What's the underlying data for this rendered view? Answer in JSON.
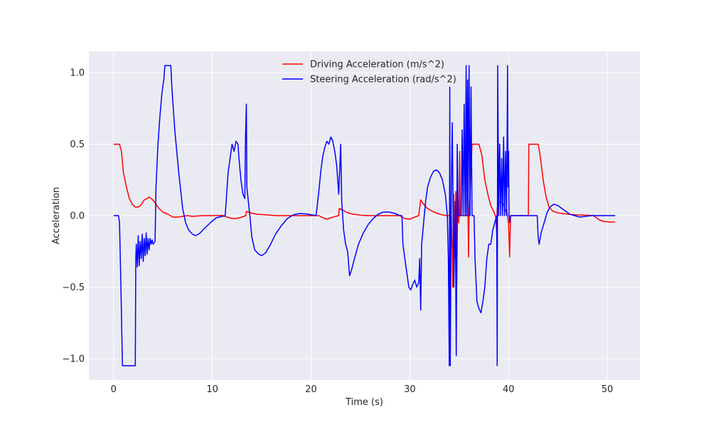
{
  "chart_data": {
    "type": "line",
    "title": "",
    "xlabel": "Time (s)",
    "ylabel": "Acceleration",
    "xlim": [
      -2.5,
      53.3
    ],
    "ylim": [
      -1.15,
      1.15
    ],
    "xticks": [
      0,
      10,
      20,
      30,
      40,
      50
    ],
    "yticks": [
      -1.0,
      -0.5,
      0.0,
      0.5,
      1.0
    ],
    "xtick_labels": [
      "0",
      "10",
      "20",
      "30",
      "40",
      "50"
    ],
    "ytick_labels": [
      "−1.0",
      "−0.5",
      "0.0",
      "0.5",
      "1.0"
    ],
    "grid": true,
    "legend_position": "top-center",
    "background": "#eaeaf2",
    "series": [
      {
        "name": "Driving Acceleration (m/s^2)",
        "color": "#ff0000",
        "points": [
          [
            0,
            0.5
          ],
          [
            0.6,
            0.5
          ],
          [
            0.8,
            0.45
          ],
          [
            1.0,
            0.3
          ],
          [
            1.3,
            0.2
          ],
          [
            1.6,
            0.12
          ],
          [
            1.9,
            0.08
          ],
          [
            2.2,
            0.06
          ],
          [
            2.5,
            0.06
          ],
          [
            2.8,
            0.075
          ],
          [
            3.1,
            0.11
          ],
          [
            3.4,
            0.12
          ],
          [
            3.6,
            0.13
          ],
          [
            3.9,
            0.115
          ],
          [
            4.2,
            0.09
          ],
          [
            4.6,
            0.05
          ],
          [
            5.0,
            0.025
          ],
          [
            5.5,
            0.01
          ],
          [
            6.0,
            -0.01
          ],
          [
            6.5,
            -0.01
          ],
          [
            7.0,
            -0.005
          ],
          [
            7.5,
            0.0
          ],
          [
            8,
            -0.005
          ],
          [
            9,
            0.0
          ],
          [
            10,
            0.0
          ],
          [
            11,
            0.002
          ],
          [
            11.5,
            -0.01
          ],
          [
            12,
            -0.02
          ],
          [
            12.5,
            -0.02
          ],
          [
            13.0,
            -0.01
          ],
          [
            13.4,
            0.0
          ],
          [
            13.45,
            0.03
          ],
          [
            13.8,
            0.02
          ],
          [
            14.5,
            0.01
          ],
          [
            15.5,
            0.005
          ],
          [
            16.5,
            0.0
          ],
          [
            17.5,
            0.0
          ],
          [
            19,
            0.0
          ],
          [
            20,
            0.0
          ],
          [
            20.8,
            0.0
          ],
          [
            21.2,
            -0.015
          ],
          [
            21.6,
            -0.025
          ],
          [
            22,
            -0.015
          ],
          [
            22.5,
            -0.005
          ],
          [
            22.8,
            0.0
          ],
          [
            22.85,
            0.05
          ],
          [
            23.2,
            0.04
          ],
          [
            23.7,
            0.02
          ],
          [
            24.3,
            0.01
          ],
          [
            25,
            0.003
          ],
          [
            26,
            0.0
          ],
          [
            27,
            0.0
          ],
          [
            28,
            0.0
          ],
          [
            29,
            0.0
          ],
          [
            29.5,
            -0.02
          ],
          [
            30.0,
            -0.025
          ],
          [
            30.5,
            -0.01
          ],
          [
            30.9,
            0.0
          ],
          [
            31.1,
            0.11
          ],
          [
            31.4,
            0.08
          ],
          [
            31.8,
            0.05
          ],
          [
            32.3,
            0.03
          ],
          [
            32.8,
            0.015
          ],
          [
            33.3,
            0.005
          ],
          [
            33.8,
            0.0
          ],
          [
            34.2,
            0.0
          ],
          [
            34.3,
            -0.25
          ],
          [
            34.35,
            -0.5
          ],
          [
            34.45,
            0.15
          ],
          [
            34.55,
            -0.3
          ],
          [
            34.65,
            0.17
          ],
          [
            34.75,
            -0.48
          ],
          [
            34.85,
            0.12
          ],
          [
            34.95,
            -0.05
          ],
          [
            35.0,
            0.0
          ],
          [
            35.05,
            0.45
          ],
          [
            35.1,
            0.0
          ],
          [
            35.5,
            0.0
          ],
          [
            35.9,
            0.0
          ],
          [
            35.95,
            -0.29
          ],
          [
            36.0,
            0.0
          ],
          [
            36.3,
            0.5
          ],
          [
            37.0,
            0.5
          ],
          [
            37.3,
            0.42
          ],
          [
            37.6,
            0.25
          ],
          [
            37.9,
            0.15
          ],
          [
            38.2,
            0.07
          ],
          [
            38.5,
            0.03
          ],
          [
            38.7,
            -0.01
          ],
          [
            38.8,
            -0.12
          ],
          [
            38.85,
            0.05
          ],
          [
            39.0,
            0.1
          ],
          [
            39.5,
            0.08
          ],
          [
            39.7,
            0.03
          ],
          [
            39.8,
            0.05
          ],
          [
            40.0,
            -0.06
          ],
          [
            40.1,
            -0.29
          ],
          [
            40.2,
            0.0
          ],
          [
            42.0,
            0.0
          ],
          [
            42.05,
            0.5
          ],
          [
            43.0,
            0.5
          ],
          [
            43.2,
            0.42
          ],
          [
            43.5,
            0.25
          ],
          [
            43.8,
            0.13
          ],
          [
            44.1,
            0.06
          ],
          [
            44.5,
            0.03
          ],
          [
            45,
            0.02
          ],
          [
            45.5,
            0.015
          ],
          [
            46,
            0.01
          ],
          [
            47,
            0.005
          ],
          [
            48,
            0.003
          ],
          [
            48.6,
            0.0
          ],
          [
            49.2,
            -0.03
          ],
          [
            49.6,
            -0.04
          ],
          [
            50.2,
            -0.045
          ],
          [
            50.8,
            -0.045
          ]
        ]
      },
      {
        "name": "Steering Acceleration (rad/s^2)",
        "color": "#0000ff",
        "points": [
          [
            0,
            0.0
          ],
          [
            0.5,
            0.0
          ],
          [
            0.6,
            -0.05
          ],
          [
            0.75,
            -0.5
          ],
          [
            0.9,
            -1.05
          ],
          [
            2.2,
            -1.05
          ],
          [
            2.25,
            -0.3
          ],
          [
            2.3,
            -0.2
          ],
          [
            2.4,
            -0.36
          ],
          [
            2.5,
            -0.14
          ],
          [
            2.6,
            -0.35
          ],
          [
            2.7,
            -0.18
          ],
          [
            2.8,
            -0.3
          ],
          [
            2.9,
            -0.13
          ],
          [
            3.0,
            -0.32
          ],
          [
            3.1,
            -0.16
          ],
          [
            3.2,
            -0.28
          ],
          [
            3.3,
            -0.12
          ],
          [
            3.4,
            -0.27
          ],
          [
            3.5,
            -0.16
          ],
          [
            3.6,
            -0.24
          ],
          [
            3.7,
            -0.16
          ],
          [
            3.8,
            -0.2
          ],
          [
            3.9,
            -0.17
          ],
          [
            4.0,
            -0.2
          ],
          [
            4.2,
            -0.18
          ],
          [
            4.3,
            0.2
          ],
          [
            4.5,
            0.5
          ],
          [
            4.7,
            0.7
          ],
          [
            4.9,
            0.86
          ],
          [
            5.1,
            0.96
          ],
          [
            5.2,
            1.05
          ],
          [
            5.8,
            1.05
          ],
          [
            5.9,
            0.9
          ],
          [
            6.2,
            0.6
          ],
          [
            6.6,
            0.3
          ],
          [
            7.0,
            0.05
          ],
          [
            7.3,
            -0.05
          ],
          [
            7.6,
            -0.1
          ],
          [
            8.0,
            -0.13
          ],
          [
            8.3,
            -0.14
          ],
          [
            8.7,
            -0.125
          ],
          [
            9.2,
            -0.09
          ],
          [
            9.8,
            -0.05
          ],
          [
            10.4,
            -0.015
          ],
          [
            11.0,
            -0.005
          ],
          [
            11.3,
            0.0
          ],
          [
            11.4,
            0.1
          ],
          [
            11.6,
            0.3
          ],
          [
            11.8,
            0.4
          ],
          [
            12.0,
            0.5
          ],
          [
            12.2,
            0.45
          ],
          [
            12.4,
            0.52
          ],
          [
            12.6,
            0.5
          ],
          [
            12.7,
            0.4
          ],
          [
            12.9,
            0.25
          ],
          [
            13.1,
            0.15
          ],
          [
            13.3,
            0.12
          ],
          [
            13.35,
            0.5
          ],
          [
            13.45,
            0.78
          ],
          [
            13.5,
            0.2
          ],
          [
            13.8,
            0.0
          ],
          [
            14.0,
            -0.15
          ],
          [
            14.3,
            -0.24
          ],
          [
            14.7,
            -0.27
          ],
          [
            15.0,
            -0.28
          ],
          [
            15.4,
            -0.26
          ],
          [
            15.9,
            -0.2
          ],
          [
            16.4,
            -0.13
          ],
          [
            17.0,
            -0.07
          ],
          [
            17.6,
            -0.02
          ],
          [
            18.2,
            0.005
          ],
          [
            18.8,
            0.015
          ],
          [
            19.5,
            0.012
          ],
          [
            20.1,
            0.005
          ],
          [
            20.5,
            0.0
          ],
          [
            20.6,
            0.05
          ],
          [
            20.8,
            0.18
          ],
          [
            21.0,
            0.32
          ],
          [
            21.2,
            0.42
          ],
          [
            21.4,
            0.48
          ],
          [
            21.6,
            0.52
          ],
          [
            21.8,
            0.5
          ],
          [
            22.0,
            0.55
          ],
          [
            22.2,
            0.52
          ],
          [
            22.4,
            0.45
          ],
          [
            22.6,
            0.35
          ],
          [
            22.8,
            0.15
          ],
          [
            23.0,
            0.5
          ],
          [
            23.1,
            0.1
          ],
          [
            23.3,
            -0.1
          ],
          [
            23.5,
            -0.2
          ],
          [
            23.7,
            -0.25
          ],
          [
            23.9,
            -0.42
          ],
          [
            24.1,
            -0.38
          ],
          [
            24.4,
            -0.3
          ],
          [
            24.8,
            -0.2
          ],
          [
            25.3,
            -0.12
          ],
          [
            25.8,
            -0.06
          ],
          [
            26.3,
            -0.02
          ],
          [
            26.8,
            0.01
          ],
          [
            27.3,
            0.025
          ],
          [
            27.9,
            0.025
          ],
          [
            28.5,
            0.015
          ],
          [
            29.0,
            0.0
          ],
          [
            29.2,
            0.0
          ],
          [
            29.3,
            -0.2
          ],
          [
            29.5,
            -0.3
          ],
          [
            29.7,
            -0.4
          ],
          [
            29.9,
            -0.5
          ],
          [
            30.1,
            -0.52
          ],
          [
            30.3,
            -0.48
          ],
          [
            30.5,
            -0.45
          ],
          [
            30.7,
            -0.5
          ],
          [
            30.9,
            -0.47
          ],
          [
            31.0,
            -0.3
          ],
          [
            31.1,
            -0.66
          ],
          [
            31.2,
            -0.2
          ],
          [
            31.4,
            -0.05
          ],
          [
            31.6,
            0.1
          ],
          [
            31.8,
            0.2
          ],
          [
            32.1,
            0.27
          ],
          [
            32.4,
            0.31
          ],
          [
            32.7,
            0.32
          ],
          [
            33.0,
            0.3
          ],
          [
            33.3,
            0.25
          ],
          [
            33.6,
            0.15
          ],
          [
            33.8,
            0.0
          ],
          [
            33.9,
            -0.3
          ],
          [
            34.0,
            -1.05
          ],
          [
            34.05,
            0.9
          ],
          [
            34.1,
            -1.05
          ],
          [
            34.2,
            0.15
          ],
          [
            34.3,
            0.65
          ],
          [
            34.45,
            -0.5
          ],
          [
            34.6,
            0.1
          ],
          [
            34.7,
            -0.98
          ],
          [
            34.8,
            0.5
          ],
          [
            34.9,
            0.0
          ],
          [
            35.2,
            0.0
          ],
          [
            35.3,
            0.6
          ],
          [
            35.4,
            0.0
          ],
          [
            35.5,
            0.78
          ],
          [
            35.6,
            0.0
          ],
          [
            35.7,
            1.05
          ],
          [
            35.75,
            0.0
          ],
          [
            35.85,
            0.95
          ],
          [
            35.9,
            0.0
          ],
          [
            36.0,
            1.05
          ],
          [
            36.1,
            0.0
          ],
          [
            36.2,
            0.9
          ],
          [
            36.3,
            0.0
          ],
          [
            36.5,
            0.0
          ],
          [
            36.6,
            -0.3
          ],
          [
            36.8,
            -0.6
          ],
          [
            37.0,
            -0.65
          ],
          [
            37.2,
            -0.68
          ],
          [
            37.4,
            -0.6
          ],
          [
            37.6,
            -0.5
          ],
          [
            37.8,
            -0.3
          ],
          [
            38.0,
            -0.2
          ],
          [
            38.2,
            -0.2
          ],
          [
            38.4,
            -0.1
          ],
          [
            38.6,
            -0.05
          ],
          [
            38.8,
            0.0
          ],
          [
            38.85,
            -1.05
          ],
          [
            38.9,
            1.05
          ],
          [
            39.0,
            0.0
          ],
          [
            39.1,
            0.5
          ],
          [
            39.2,
            0.0
          ],
          [
            39.3,
            0.4
          ],
          [
            39.4,
            0.0
          ],
          [
            39.5,
            0.55
          ],
          [
            39.6,
            0.0
          ],
          [
            39.7,
            0.45
          ],
          [
            39.8,
            0.0
          ],
          [
            39.9,
            1.05
          ],
          [
            39.95,
            0.2
          ],
          [
            40.0,
            0.45
          ],
          [
            40.05,
            0.0
          ],
          [
            40.1,
            -0.05
          ],
          [
            40.2,
            0.0
          ],
          [
            42.9,
            0.0
          ],
          [
            43.0,
            -0.15
          ],
          [
            43.1,
            -0.2
          ],
          [
            43.3,
            -0.12
          ],
          [
            43.6,
            -0.05
          ],
          [
            43.9,
            0.02
          ],
          [
            44.2,
            0.06
          ],
          [
            44.6,
            0.08
          ],
          [
            45.0,
            0.07
          ],
          [
            45.4,
            0.05
          ],
          [
            45.8,
            0.03
          ],
          [
            46.2,
            0.01
          ],
          [
            46.7,
            0.0
          ],
          [
            47.2,
            -0.01
          ],
          [
            47.8,
            -0.005
          ],
          [
            48.4,
            0.0
          ],
          [
            49.0,
            0.0
          ],
          [
            50.0,
            0.0
          ],
          [
            50.8,
            0.0
          ]
        ]
      }
    ]
  }
}
